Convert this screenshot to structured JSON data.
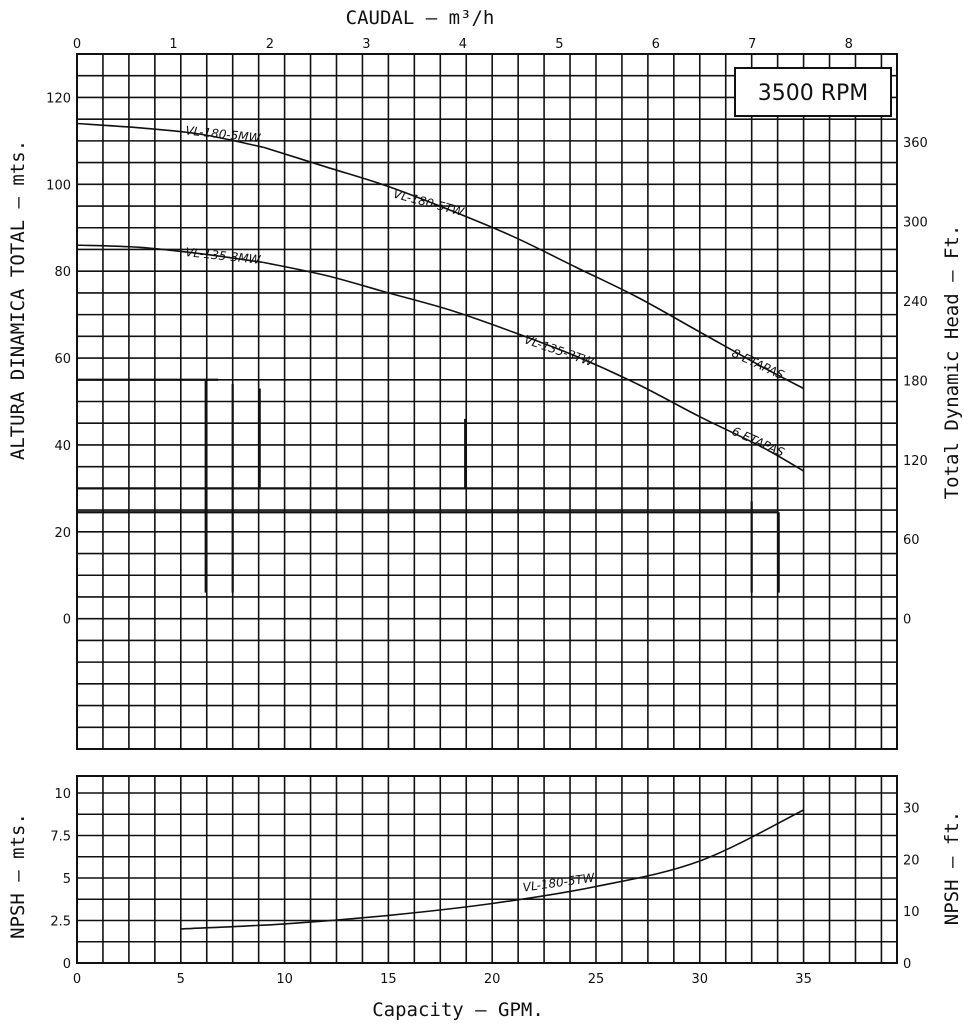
{
  "chart_data": [
    {
      "type": "line",
      "name": "head-chart",
      "title": "",
      "badge": "3500 RPM",
      "top_axis": {
        "label": "CAUDAL  – m³/h",
        "ticks": [
          "0",
          "1",
          "2",
          "3",
          "4",
          "5",
          "6",
          "7",
          "8"
        ]
      },
      "left_axis": {
        "label": "ALTURA DINAMICA TOTAL – mts.",
        "ticks": [
          "0",
          "20",
          "40",
          "60",
          "80",
          "100",
          "120"
        ],
        "ylim": [
          -30,
          130
        ]
      },
      "right_axis": {
        "label": "Total Dynamic Head – Ft.",
        "ticks": [
          "0",
          "60",
          "120",
          "180",
          "240",
          "300",
          "360"
        ]
      },
      "xlim_gpm": [
        0,
        39.5
      ],
      "grid": true,
      "series": [
        {
          "name": "VL-180-5MW",
          "x": [
            0,
            3,
            6,
            9
          ],
          "y": [
            114,
            113,
            111.5,
            108.5
          ]
        },
        {
          "name": "VL-180-5TW",
          "x": [
            9,
            12,
            15,
            18,
            21,
            24,
            27,
            30,
            33,
            35
          ],
          "y": [
            108.5,
            104,
            99.5,
            94,
            88,
            81,
            74,
            66,
            58,
            53
          ]
        },
        {
          "name": "VL-135-3MW",
          "x": [
            0,
            3,
            6,
            9
          ],
          "y": [
            86,
            85.5,
            84,
            82
          ]
        },
        {
          "name": "VL-135-3TW",
          "x": [
            9,
            12,
            15,
            18,
            21,
            24,
            27,
            30,
            33,
            35
          ],
          "y": [
            82,
            79,
            75,
            71,
            66,
            60.5,
            54,
            46.5,
            39.5,
            34
          ]
        }
      ],
      "annotations": [
        {
          "text": "VL-180-5MW",
          "x": 5.2,
          "y": 111.5,
          "rotate": 6
        },
        {
          "text": "VL-180-5TW",
          "x": 15.2,
          "y": 97,
          "rotate": 15
        },
        {
          "text": "VL-135-3MW",
          "x": 5.2,
          "y": 83.5,
          "rotate": 6
        },
        {
          "text": "VL-135-3TW",
          "x": 21.5,
          "y": 63.5,
          "rotate": 19
        },
        {
          "text": "8 ETAPAS",
          "x": 31.5,
          "y": 60.5,
          "rotate": 25
        },
        {
          "text": "6 ETAPAS",
          "x": 31.5,
          "y": 42.5,
          "rotate": 24
        }
      ]
    },
    {
      "type": "line",
      "name": "npsh-chart",
      "title": "",
      "bottom_axis": {
        "label": "Capacity – GPM.",
        "ticks": [
          "0",
          "5",
          "10",
          "15",
          "20",
          "25",
          "30",
          "35"
        ]
      },
      "left_axis": {
        "label": "NPSH – mts.",
        "ticks": [
          "0",
          "2.5",
          "5",
          "7.5",
          "10"
        ],
        "ylim": [
          0,
          11
        ]
      },
      "right_axis": {
        "label": "NPSH – ft.",
        "ticks": [
          "0",
          "10",
          "20",
          "30"
        ]
      },
      "xlim_gpm": [
        0,
        39.5
      ],
      "grid": true,
      "series": [
        {
          "name": "VL-180-5TW",
          "x": [
            5,
            10,
            15,
            20,
            25,
            30,
            35
          ],
          "y": [
            2.0,
            2.3,
            2.8,
            3.5,
            4.5,
            6.0,
            9.0
          ]
        }
      ],
      "annotations": [
        {
          "text": "VL-180-5TW",
          "x": 21.5,
          "y": 4.2,
          "rotate": -8
        }
      ]
    }
  ]
}
